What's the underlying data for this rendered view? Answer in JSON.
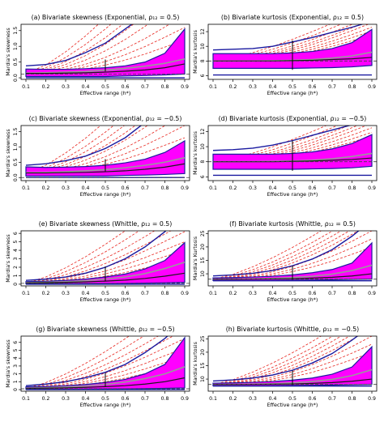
{
  "figure": {
    "panel_count": 8
  },
  "colors": {
    "band": "#ff00ff",
    "band_edge": "#1a1aa0",
    "envelope": "#1a1aa0",
    "sims": "#e8261f",
    "mean": "#1a1a1a",
    "smooth": "#9a9a9a",
    "ref": "#444444",
    "vline": "#000000"
  },
  "chart_data": [
    {
      "id": "a",
      "type": "area",
      "title": "(a) Bivariate skewness (Exponential, ρ₁₂ = 0.5)",
      "xlabel": "Effective range (h*)",
      "ylabel": "Mardia's skewness",
      "x": [
        0.1,
        0.2,
        0.3,
        0.4,
        0.5,
        0.6,
        0.7,
        0.8,
        0.9
      ],
      "xticks": [
        "0.1",
        "0.2",
        "0.3",
        "0.4",
        "0.5",
        "0.6",
        "0.7",
        "0.8",
        "0.9"
      ],
      "ylim": [
        -0.05,
        1.7
      ],
      "yticks": [
        0.0,
        0.5,
        1.0,
        1.5
      ],
      "yticklabels": [
        "0.0",
        "0.5",
        "1.0",
        "1.5"
      ],
      "band_upper": [
        0.28,
        0.27,
        0.27,
        0.29,
        0.32,
        0.38,
        0.5,
        0.78,
        1.55
      ],
      "band_lower": [
        0.04,
        0.04,
        0.04,
        0.04,
        0.04,
        0.06,
        0.07,
        0.09,
        0.12
      ],
      "mean": [
        0.14,
        0.14,
        0.15,
        0.16,
        0.18,
        0.21,
        0.25,
        0.32,
        0.44
      ],
      "smooth": [
        0.15,
        0.16,
        0.18,
        0.2,
        0.24,
        0.3,
        0.37,
        0.46,
        0.6
      ],
      "env_upper": [
        0.38,
        0.42,
        0.55,
        0.8,
        1.1,
        1.55,
        2.0,
        2.6,
        3.2
      ],
      "env_lower": [
        0.0,
        0.0,
        0.0,
        0.0,
        0.0,
        0.0,
        0.0,
        0.0,
        0.0
      ],
      "ref": 0.12,
      "vline": {
        "x": 0.5,
        "y0": 0.2,
        "y1": 0.58
      },
      "sim_top": [
        1.2,
        1.6,
        2.0,
        2.6,
        3.1,
        3.5,
        4.0,
        4.6
      ]
    },
    {
      "id": "b",
      "type": "area",
      "title": "(b) Bivariate kurtosis (Exponential, ρ₁₂ = 0.5)",
      "xlabel": "Effective range (h*)",
      "ylabel": "Mardia's kurtosis",
      "x": [
        0.1,
        0.2,
        0.3,
        0.4,
        0.5,
        0.6,
        0.7,
        0.8,
        0.9
      ],
      "xticks": [
        "0.1",
        "0.2",
        "0.3",
        "0.4",
        "0.5",
        "0.6",
        "0.7",
        "0.8",
        "0.9"
      ],
      "ylim": [
        5.5,
        13.0
      ],
      "yticks": [
        6,
        8,
        10,
        12
      ],
      "yticklabels": [
        "6",
        "8",
        "10",
        "12"
      ],
      "band_upper": [
        9.0,
        9.0,
        9.0,
        9.0,
        9.1,
        9.3,
        9.7,
        10.5,
        12.3
      ],
      "band_lower": [
        7.0,
        7.0,
        7.0,
        7.0,
        7.0,
        7.05,
        7.1,
        7.2,
        7.4
      ],
      "mean": [
        8.0,
        8.0,
        8.0,
        8.0,
        8.05,
        8.1,
        8.2,
        8.3,
        8.5
      ],
      "smooth": [
        8.0,
        8.0,
        8.0,
        8.05,
        8.1,
        8.2,
        8.4,
        8.7,
        9.2
      ],
      "env_upper": [
        9.5,
        9.6,
        9.7,
        10.0,
        10.6,
        11.2,
        11.9,
        12.6,
        13.4
      ],
      "env_lower": [
        6.1,
        6.1,
        6.1,
        6.1,
        6.1,
        6.1,
        6.1,
        6.1,
        6.1
      ],
      "ref": 8.0,
      "vline": {
        "x": 0.5,
        "y0": 6.8,
        "y1": 10.8
      },
      "sim_top": [
        11.6,
        12.1,
        12.6,
        13.2,
        13.6,
        14.1,
        14.8,
        15.5
      ]
    },
    {
      "id": "c",
      "type": "area",
      "title": "(c) Bivariate skewness (Exponential, ρ₁₂ = −0.5)",
      "xlabel": "Effective range (h*)",
      "ylabel": "Mardia's skewness",
      "x": [
        0.1,
        0.2,
        0.3,
        0.4,
        0.5,
        0.6,
        0.7,
        0.8,
        0.9
      ],
      "xticks": [
        "0.1",
        "0.2",
        "0.3",
        "0.4",
        "0.5",
        "0.6",
        "0.7",
        "0.8",
        "0.9"
      ],
      "ylim": [
        -0.1,
        1.7
      ],
      "yticks": [
        0.0,
        0.5,
        1.0,
        1.5
      ],
      "yticklabels": [
        "0.0",
        "0.5",
        "1.0",
        "1.5"
      ],
      "band_upper": [
        0.35,
        0.33,
        0.34,
        0.36,
        0.4,
        0.48,
        0.6,
        0.82,
        1.2
      ],
      "band_lower": [
        0.05,
        0.05,
        0.05,
        0.05,
        0.05,
        0.07,
        0.08,
        0.1,
        0.13
      ],
      "mean": [
        0.15,
        0.15,
        0.16,
        0.17,
        0.19,
        0.22,
        0.27,
        0.34,
        0.45
      ],
      "smooth": [
        0.16,
        0.17,
        0.19,
        0.22,
        0.26,
        0.32,
        0.4,
        0.5,
        0.65
      ],
      "env_upper": [
        0.4,
        0.45,
        0.55,
        0.7,
        0.95,
        1.3,
        1.8,
        2.4,
        3.0
      ],
      "env_lower": [
        0.0,
        0.0,
        0.0,
        0.0,
        0.0,
        0.0,
        0.0,
        0.0,
        0.0
      ],
      "ref": 0.0,
      "vline": {
        "x": 0.5,
        "y0": 0.2,
        "y1": 0.6
      },
      "sim_top": [
        1.3,
        1.7,
        2.1,
        2.6,
        3.0,
        3.4,
        3.8,
        4.4
      ]
    },
    {
      "id": "d",
      "type": "area",
      "title": "(d) Bivariate kurtosis (Exponential, ρ₁₂ = −0.5)",
      "xlabel": "Effective range (h*)",
      "ylabel": "Mardia's kurtosis",
      "x": [
        0.1,
        0.2,
        0.3,
        0.4,
        0.5,
        0.6,
        0.7,
        0.8,
        0.9
      ],
      "xticks": [
        "0.1",
        "0.2",
        "0.3",
        "0.4",
        "0.5",
        "0.6",
        "0.7",
        "0.8",
        "0.9"
      ],
      "ylim": [
        5.5,
        12.8
      ],
      "yticks": [
        6,
        8,
        10,
        12
      ],
      "yticklabels": [
        "6",
        "8",
        "10",
        "12"
      ],
      "band_upper": [
        9.0,
        9.0,
        9.0,
        9.0,
        9.1,
        9.3,
        9.7,
        10.4,
        11.6
      ],
      "band_lower": [
        7.0,
        7.0,
        7.0,
        7.0,
        7.0,
        7.05,
        7.1,
        7.2,
        7.4
      ],
      "mean": [
        8.0,
        8.0,
        8.0,
        8.0,
        8.05,
        8.1,
        8.2,
        8.3,
        8.5
      ],
      "smooth": [
        8.0,
        8.0,
        8.0,
        8.05,
        8.1,
        8.2,
        8.4,
        8.7,
        9.1
      ],
      "env_upper": [
        9.5,
        9.6,
        9.8,
        10.2,
        10.8,
        11.5,
        12.2,
        12.9,
        13.5
      ],
      "env_lower": [
        6.2,
        6.2,
        6.2,
        6.2,
        6.2,
        6.2,
        6.2,
        6.2,
        6.2
      ],
      "ref": 8.0,
      "vline": {
        "x": 0.5,
        "y0": 6.8,
        "y1": 10.8
      },
      "sim_top": [
        11.4,
        11.9,
        12.5,
        13.1,
        13.6,
        14.1,
        14.8,
        15.5
      ]
    },
    {
      "id": "e",
      "type": "area",
      "title": "(e) Bivariate skewness (Whittle, ρ₁₂ = 0.5)",
      "xlabel": "Effective range (h*)",
      "ylabel": "Mardia's skewness",
      "x": [
        0.1,
        0.2,
        0.3,
        0.4,
        0.5,
        0.6,
        0.7,
        0.8,
        0.9
      ],
      "xticks": [
        "0.1",
        "0.2",
        "0.3",
        "0.4",
        "0.5",
        "0.6",
        "0.7",
        "0.8",
        "0.9"
      ],
      "ylim": [
        -0.2,
        6.3
      ],
      "yticks": [
        0,
        1,
        2,
        3,
        4,
        5,
        6
      ],
      "yticklabels": [
        "0",
        "1",
        "2",
        "3",
        "4",
        "5",
        "6"
      ],
      "band_upper": [
        0.3,
        0.35,
        0.45,
        0.6,
        0.85,
        1.2,
        1.8,
        2.8,
        4.9
      ],
      "band_lower": [
        0.05,
        0.05,
        0.05,
        0.06,
        0.07,
        0.09,
        0.12,
        0.16,
        0.22
      ],
      "mean": [
        0.15,
        0.18,
        0.22,
        0.28,
        0.36,
        0.48,
        0.68,
        0.95,
        1.3
      ],
      "smooth": [
        0.18,
        0.22,
        0.3,
        0.42,
        0.6,
        0.85,
        1.25,
        1.85,
        2.6
      ],
      "env_upper": [
        0.45,
        0.6,
        0.85,
        1.3,
        2.0,
        3.0,
        4.4,
        6.2,
        8.5
      ],
      "env_lower": [
        0.0,
        0.0,
        0.0,
        0.0,
        0.0,
        0.0,
        0.0,
        0.0,
        0.0
      ],
      "ref": 0.1,
      "vline": {
        "x": 0.5,
        "y0": 0.35,
        "y1": 2.1
      },
      "sim_top": [
        3.0,
        4.0,
        5.0,
        6.2,
        7.2,
        8.5,
        10.0,
        11.5
      ]
    },
    {
      "id": "f",
      "type": "area",
      "title": "(f) Bivariate kurtosis (Whittle, ρ₁₂ = 0.5)",
      "xlabel": "Effective range (h*)",
      "ylabel": "Mardia's Kurtosis",
      "x": [
        0.1,
        0.2,
        0.3,
        0.4,
        0.5,
        0.6,
        0.7,
        0.8,
        0.9
      ],
      "xticks": [
        "0.1",
        "0.2",
        "0.3",
        "0.4",
        "0.5",
        "0.6",
        "0.7",
        "0.8",
        "0.9"
      ],
      "ylim": [
        5.5,
        26.0
      ],
      "yticks": [
        10,
        15,
        20,
        25
      ],
      "yticklabels": [
        "10",
        "15",
        "20",
        "25"
      ],
      "band_upper": [
        8.5,
        8.6,
        8.8,
        9.1,
        9.6,
        10.4,
        11.6,
        14.0,
        21.5
      ],
      "band_lower": [
        7.5,
        7.5,
        7.5,
        7.55,
        7.6,
        7.7,
        7.8,
        7.9,
        8.0
      ],
      "mean": [
        8.0,
        8.0,
        8.05,
        8.1,
        8.2,
        8.4,
        8.7,
        9.2,
        10.0
      ],
      "smooth": [
        8.0,
        8.05,
        8.15,
        8.3,
        8.6,
        9.1,
        9.9,
        11.2,
        13.2
      ],
      "env_upper": [
        9.2,
        9.6,
        10.2,
        11.2,
        13.0,
        15.5,
        19.0,
        24.0,
        30.0
      ],
      "env_lower": [
        7.4,
        7.4,
        7.4,
        7.4,
        7.4,
        7.4,
        7.4,
        7.4,
        7.4
      ],
      "ref": 8.0,
      "vline": {
        "x": 0.5,
        "y0": 7.8,
        "y1": 13.0
      },
      "sim_top": [
        20.0,
        23.0,
        26.0,
        29.0,
        31.0,
        33.0,
        35.0,
        38.0
      ]
    },
    {
      "id": "g",
      "type": "area",
      "title": "(g) Bivariate skewness (Whittle, ρ₁₂ = −0.5)",
      "xlabel": "Effective range (h*)",
      "ylabel": "Mardia's skewness",
      "x": [
        0.1,
        0.2,
        0.3,
        0.4,
        0.5,
        0.6,
        0.7,
        0.8,
        0.9
      ],
      "xticks": [
        "0.1",
        "0.2",
        "0.3",
        "0.4",
        "0.5",
        "0.6",
        "0.7",
        "0.8",
        "0.9"
      ],
      "ylim": [
        -0.2,
        6.8
      ],
      "yticks": [
        0,
        1,
        2,
        3,
        4,
        5,
        6
      ],
      "yticklabels": [
        "0",
        "1",
        "2",
        "3",
        "4",
        "5",
        "6"
      ],
      "band_upper": [
        0.35,
        0.4,
        0.5,
        0.65,
        0.9,
        1.3,
        2.0,
        3.2,
        6.6
      ],
      "band_lower": [
        0.05,
        0.05,
        0.05,
        0.06,
        0.07,
        0.09,
        0.12,
        0.16,
        0.22
      ],
      "mean": [
        0.16,
        0.19,
        0.23,
        0.29,
        0.38,
        0.5,
        0.7,
        1.0,
        1.5
      ],
      "smooth": [
        0.2,
        0.25,
        0.33,
        0.46,
        0.66,
        0.95,
        1.4,
        2.0,
        2.9
      ],
      "env_upper": [
        0.5,
        0.7,
        1.0,
        1.5,
        2.2,
        3.2,
        4.7,
        6.5,
        8.8
      ],
      "env_lower": [
        0.0,
        0.0,
        0.0,
        0.0,
        0.0,
        0.0,
        0.0,
        0.0,
        0.0
      ],
      "ref": 0.1,
      "vline": {
        "x": 0.5,
        "y0": 0.4,
        "y1": 2.1
      },
      "sim_top": [
        3.2,
        4.2,
        5.3,
        6.5,
        7.6,
        8.8,
        10.2,
        11.8
      ]
    },
    {
      "id": "h",
      "type": "area",
      "title": "(h) Bivariate kurtosis (Whittle, ρ₁₂ = −0.5)",
      "xlabel": "Effective range (h*)",
      "ylabel": "Mardia's kurtosis",
      "x": [
        0.1,
        0.2,
        0.3,
        0.4,
        0.5,
        0.6,
        0.7,
        0.8,
        0.9
      ],
      "xticks": [
        "0.1",
        "0.2",
        "0.3",
        "0.4",
        "0.5",
        "0.6",
        "0.7",
        "0.8",
        "0.9"
      ],
      "ylim": [
        5.5,
        26.0
      ],
      "yticks": [
        10,
        15,
        20,
        25
      ],
      "yticklabels": [
        "10",
        "15",
        "20",
        "25"
      ],
      "band_upper": [
        8.5,
        8.6,
        8.8,
        9.1,
        9.6,
        10.4,
        11.8,
        14.5,
        22.0
      ],
      "band_lower": [
        7.5,
        7.5,
        7.5,
        7.55,
        7.6,
        7.7,
        7.8,
        7.9,
        8.0
      ],
      "mean": [
        8.0,
        8.0,
        8.05,
        8.1,
        8.2,
        8.4,
        8.7,
        9.2,
        10.0
      ],
      "smooth": [
        8.0,
        8.05,
        8.15,
        8.3,
        8.6,
        9.1,
        9.9,
        11.3,
        13.5
      ],
      "env_upper": [
        9.3,
        9.7,
        10.4,
        11.5,
        13.3,
        16.0,
        19.5,
        24.5,
        30.0
      ],
      "env_lower": [
        7.4,
        7.4,
        7.4,
        7.4,
        7.4,
        7.4,
        7.4,
        7.4,
        7.4
      ],
      "ref": 8.0,
      "vline": {
        "x": 0.5,
        "y0": 7.8,
        "y1": 13.2
      },
      "sim_top": [
        20.0,
        23.0,
        26.0,
        29.0,
        31.0,
        33.0,
        35.0,
        38.0
      ]
    }
  ]
}
